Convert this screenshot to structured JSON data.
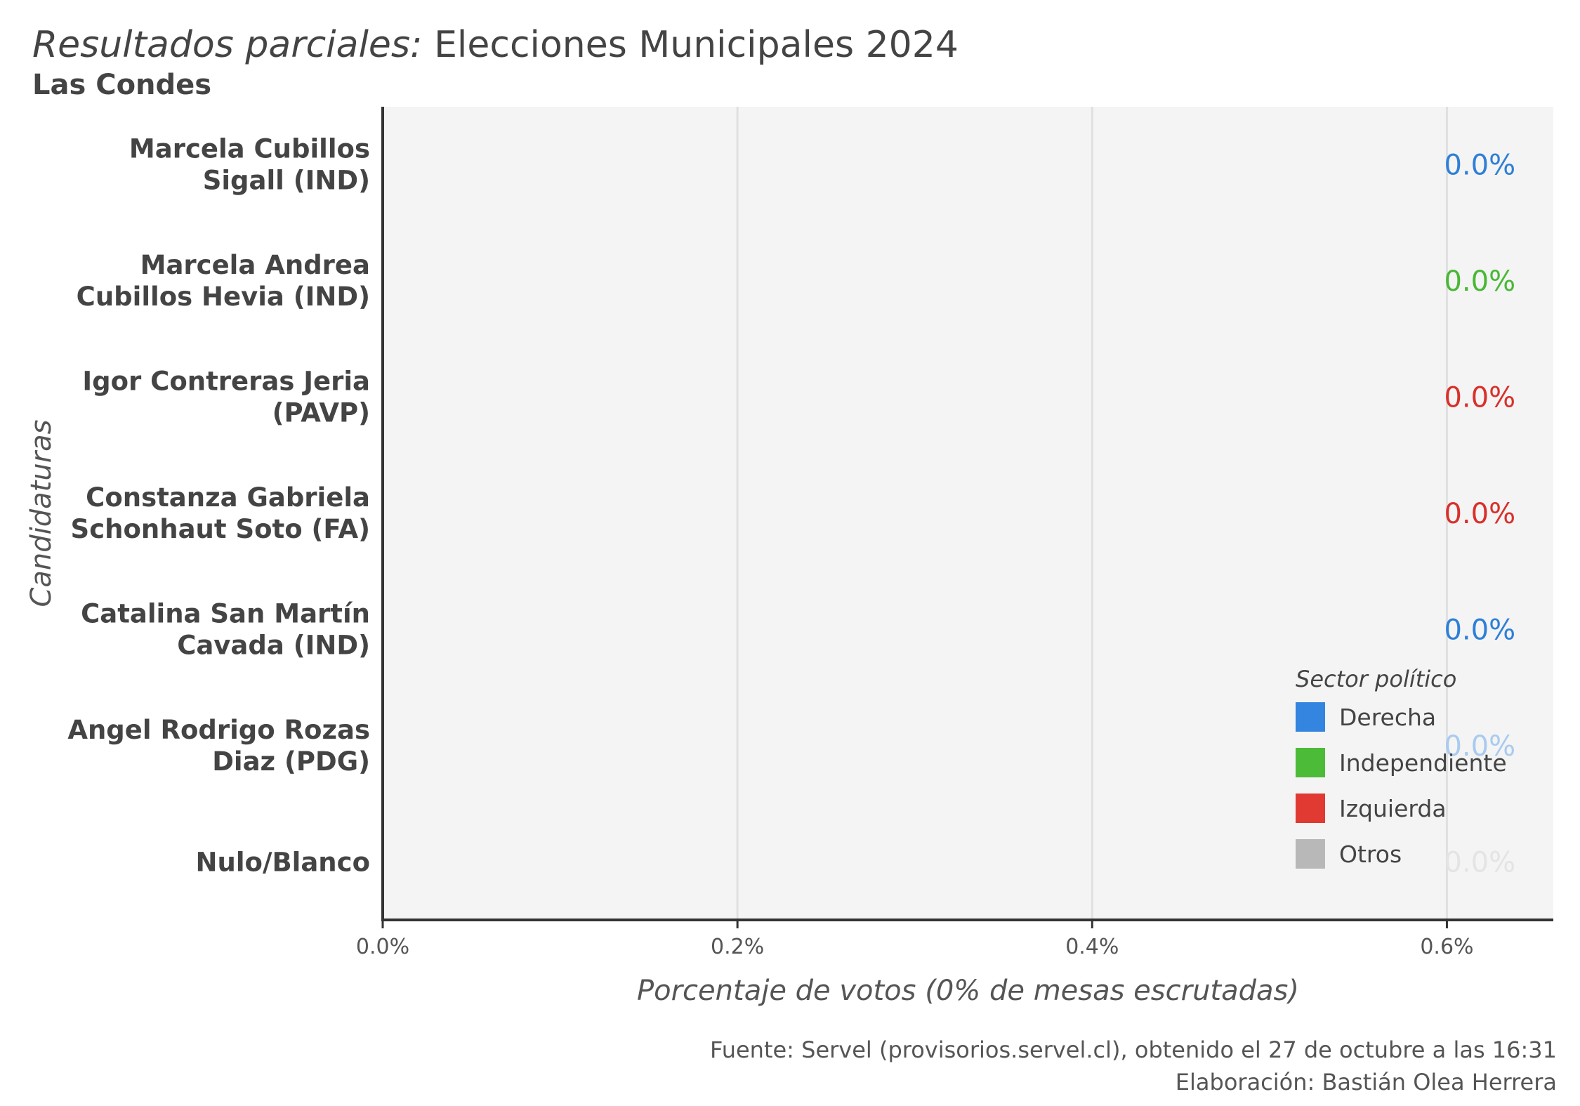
{
  "title": {
    "prefix": "Resultados parciales:",
    "main": "Elecciones Municipales 2024"
  },
  "subtitle": "Las Condes",
  "caption": {
    "line1": "Fuente: Servel (provisorios.servel.cl), obtenido el 27 de octubre a las 16:31",
    "line2": "Elaboración: Bastián Olea Herrera"
  },
  "chart_data": {
    "type": "bar",
    "orientation": "horizontal",
    "ylabel": "Candidaturas",
    "xlabel": "Porcentaje de votos (0% de mesas escrutadas)",
    "xlim": [
      0,
      0.66
    ],
    "xticks": [
      0,
      0.2,
      0.4,
      0.6
    ],
    "xtick_labels": [
      "0.0%",
      "0.2%",
      "0.4%",
      "0.6%"
    ],
    "grid": true,
    "legend": {
      "title": "Sector político",
      "position": "bottom-right",
      "items": [
        {
          "label": "Derecha",
          "color": "#3385e0"
        },
        {
          "label": "Independiente",
          "color": "#4cbb38"
        },
        {
          "label": "Izquierda",
          "color": "#e03a32"
        },
        {
          "label": "Otros",
          "color": "#b8b8b8"
        }
      ]
    },
    "categories": [
      {
        "line1": "Marcela Cubillos",
        "line2": "Sigall (IND)",
        "value": 0.0,
        "label": "0.0%",
        "color": "#2e7fd8"
      },
      {
        "line1": "Marcela Andrea",
        "line2": "Cubillos Hevia (IND)",
        "value": 0.0,
        "label": "0.0%",
        "color": "#49b835"
      },
      {
        "line1": "Igor Contreras Jeria",
        "line2": "(PAVP)",
        "value": 0.0,
        "label": "0.0%",
        "color": "#d9302b"
      },
      {
        "line1": "Constanza Gabriela",
        "line2": "Schonhaut Soto (FA)",
        "value": 0.0,
        "label": "0.0%",
        "color": "#d9302b"
      },
      {
        "line1": "Catalina San Martín",
        "line2": "Cavada (IND)",
        "value": 0.0,
        "label": "0.0%",
        "color": "#2e7fd8"
      },
      {
        "line1": "Angel Rodrigo Rozas",
        "line2": "Diaz (PDG)",
        "value": 0.0,
        "label": "0.0%",
        "color": "#a9cbef"
      },
      {
        "line1": "Nulo/Blanco",
        "line2": "",
        "value": 0.0,
        "label": "0.0%",
        "color": "#e4e4e4"
      }
    ]
  }
}
